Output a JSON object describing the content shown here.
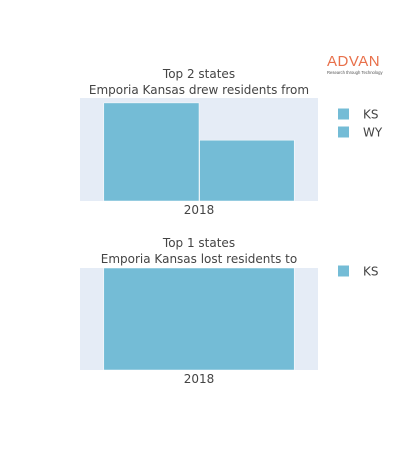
{
  "brand": {
    "name": "ADVAN",
    "tagline": "Research through Technology",
    "color": "#e8704a"
  },
  "chart_data": [
    {
      "type": "bar",
      "title": "Top 2 states",
      "subtitle": "Emporia Kansas drew residents from",
      "categories": [
        "2018"
      ],
      "series": [
        {
          "name": "KS",
          "values": [
            1.0
          ]
        },
        {
          "name": "WY",
          "values": [
            0.62
          ]
        }
      ],
      "ylim": [
        0,
        1.05
      ],
      "grid": true,
      "legend_placement": "right",
      "colors": {
        "bar": "#74bcd6",
        "plot_bg": "#e5ecf6"
      }
    },
    {
      "type": "bar",
      "title": "Top 1 states",
      "subtitle": "Emporia Kansas lost residents to",
      "categories": [
        "2018"
      ],
      "series": [
        {
          "name": "KS",
          "values": [
            1.0
          ]
        }
      ],
      "ylim": [
        0,
        1.0
      ],
      "grid": true,
      "legend_placement": "right",
      "colors": {
        "bar": "#74bcd6",
        "plot_bg": "#e5ecf6"
      }
    }
  ]
}
